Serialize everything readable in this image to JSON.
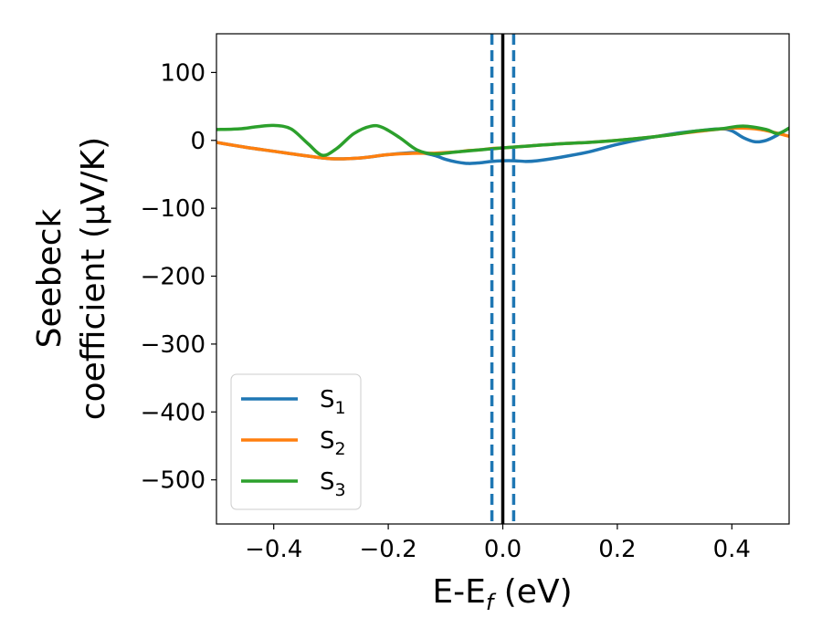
{
  "chart_data": {
    "type": "line",
    "xlabel_main": "E-E",
    "xlabel_sub": "f",
    "xlabel_unit": " (eV)",
    "ylabel_line1": "Seebeck",
    "ylabel_line2": "coefficient  (μV/K)",
    "xlim": [
      -0.5,
      0.5
    ],
    "ylim": [
      -565,
      157
    ],
    "xticks": [
      -0.4,
      -0.2,
      0.0,
      0.2,
      0.4
    ],
    "xtick_labels": [
      "−0.4",
      "−0.2",
      "0.0",
      "0.2",
      "0.4"
    ],
    "yticks": [
      100,
      0,
      -100,
      -200,
      -300,
      -400,
      -500
    ],
    "ytick_labels": [
      "100",
      "0",
      "−100",
      "−200",
      "−300",
      "−400",
      "−500"
    ],
    "grid": false,
    "legend_position": "lower-left",
    "vlines": [
      {
        "x": 0.0,
        "color": "#000000",
        "style": "solid"
      },
      {
        "x": -0.019,
        "color": "#1f77b4",
        "style": "dashed"
      },
      {
        "x": 0.019,
        "color": "#1f77b4",
        "style": "dashed"
      }
    ],
    "series": [
      {
        "name": "S",
        "sub": "1",
        "color": "#1f77b4",
        "x": [
          -0.5,
          -0.45,
          -0.4,
          -0.35,
          -0.3,
          -0.25,
          -0.2,
          -0.15,
          -0.12,
          -0.1,
          -0.08,
          -0.06,
          -0.04,
          -0.02,
          0.0,
          0.02,
          0.04,
          0.06,
          0.1,
          0.15,
          0.2,
          0.25,
          0.3,
          0.34,
          0.38,
          0.4,
          0.42,
          0.44,
          0.46,
          0.48,
          0.5
        ],
        "y": [
          -3,
          -10,
          -16,
          -22,
          -27,
          -26,
          -21,
          -18,
          -22,
          -28,
          -32,
          -34,
          -33,
          -31,
          -30,
          -30,
          -31,
          -30,
          -25,
          -17,
          -6,
          3,
          10,
          14,
          17,
          14,
          4,
          -2,
          0,
          8,
          18
        ]
      },
      {
        "name": "S",
        "sub": "2",
        "color": "#ff7f0e",
        "x": [
          -0.5,
          -0.45,
          -0.4,
          -0.35,
          -0.3,
          -0.25,
          -0.2,
          -0.15,
          -0.12,
          -0.1,
          -0.08,
          -0.06,
          -0.04,
          -0.02,
          0.0,
          0.05,
          0.1,
          0.15,
          0.2,
          0.25,
          0.3,
          0.35,
          0.4,
          0.45,
          0.5
        ],
        "y": [
          -3,
          -10,
          -16,
          -22,
          -27,
          -26,
          -21,
          -19,
          -19,
          -18,
          -17,
          -15,
          -14,
          -12,
          -11,
          -8,
          -5,
          -3,
          0,
          4,
          9,
          14,
          18,
          16,
          6
        ]
      },
      {
        "name": "S",
        "sub": "3",
        "color": "#2ca02c",
        "x": [
          -0.5,
          -0.46,
          -0.43,
          -0.4,
          -0.37,
          -0.34,
          -0.315,
          -0.29,
          -0.26,
          -0.23,
          -0.21,
          -0.18,
          -0.15,
          -0.12,
          -0.08,
          -0.04,
          0.0,
          0.05,
          0.1,
          0.15,
          0.2,
          0.25,
          0.3,
          0.34,
          0.38,
          0.42,
          0.46,
          0.48,
          0.5
        ],
        "y": [
          16,
          17,
          20,
          22,
          17,
          -5,
          -22,
          -12,
          10,
          21,
          19,
          4,
          -14,
          -20,
          -17,
          -14,
          -11,
          -8,
          -5,
          -3,
          0,
          4,
          9,
          14,
          17,
          21,
          16,
          10,
          18
        ]
      }
    ]
  }
}
